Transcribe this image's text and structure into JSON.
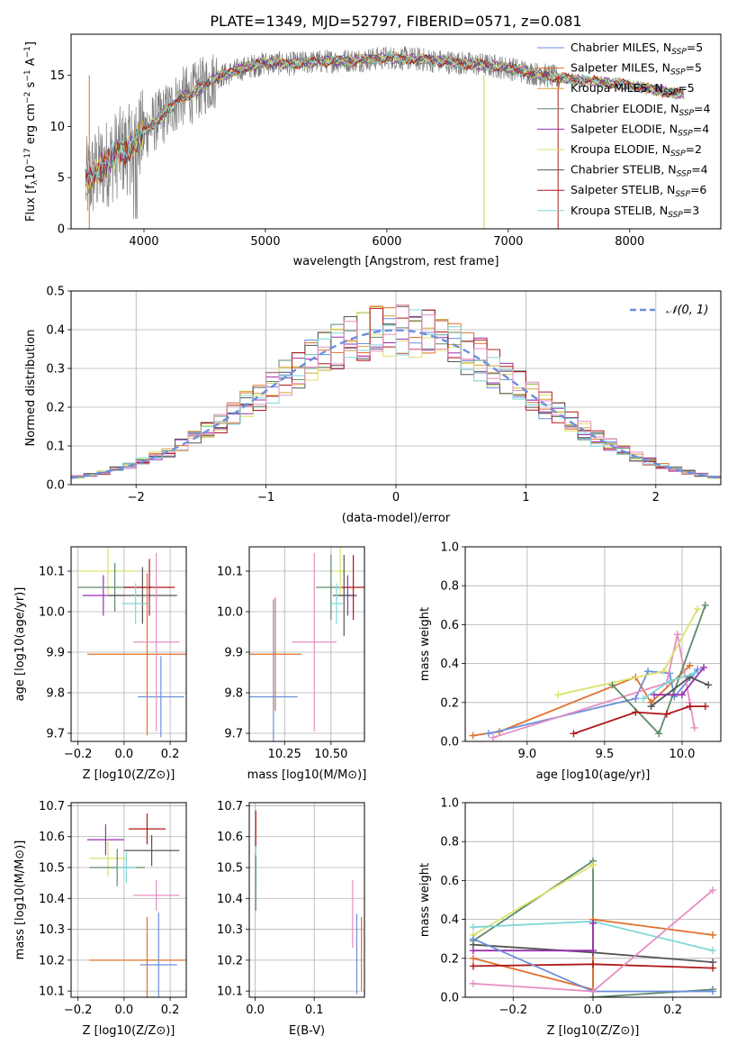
{
  "figure": {
    "title": "PLATE=1349, MJD=52797, FIBERID=0571, z=0.081"
  },
  "palette": {
    "miles_chab": "#6b8fdc",
    "miles_salp": "#e0702a",
    "miles_krou": "#d7a430",
    "elodie_chab": "#5e8a6a",
    "elodie_salp": "#9a2fb0",
    "elodie_krou": "#d9e36a",
    "stelib_chab": "#555555",
    "stelib_salp": "#b01818",
    "stelib_krou": "#7fd6d8",
    "pink": "#e58fc2",
    "spectrum": "#7f7f7f",
    "grid": "#b0b0b0"
  },
  "chart_data": [
    {
      "id": "spectrum",
      "type": "line",
      "xlabel": "wavelength [Angstrom, rest frame]",
      "ylabel": "Flux [f$_\\lambda$10$^{-17}$ erg cm$^{-2}$ s$^{-1}$ A$^{-1}$]",
      "ylabel_parts": [
        "Flux [f",
        "λ",
        "10",
        "−17",
        " erg cm",
        "−2",
        " s",
        "−1",
        " A",
        "−1",
        "]"
      ],
      "xlim": [
        3400,
        8750
      ],
      "ylim": [
        0,
        19
      ],
      "xticks": [
        4000,
        5000,
        6000,
        7000,
        8000
      ],
      "yticks": [
        0,
        5,
        10,
        15
      ],
      "continuum_x": [
        3500,
        3600,
        3700,
        3800,
        3900,
        4000,
        4100,
        4200,
        4300,
        4400,
        4500,
        4600,
        4800,
        5000,
        5200,
        5400,
        5600,
        5800,
        6000,
        6200,
        6400,
        6600,
        6800,
        7000,
        7200,
        7400,
        7600,
        7800,
        8000,
        8200,
        8400
      ],
      "continuum_y": [
        4.2,
        5.5,
        6.5,
        7.5,
        7.8,
        9.5,
        10.5,
        11.5,
        12.8,
        13.2,
        14.0,
        14.8,
        15.6,
        16.2,
        16.1,
        16.3,
        16.4,
        16.5,
        16.7,
        16.6,
        16.4,
        16.2,
        16.0,
        15.7,
        15.2,
        14.8,
        14.5,
        14.3,
        14.0,
        13.6,
        13.2
      ],
      "legend": [
        {
          "label": "Chabrier MILES, N",
          "sub": "SSP",
          "value": "=5",
          "color_key": "miles_chab"
        },
        {
          "label": "Salpeter MILES, N",
          "sub": "SSP",
          "value": "=5",
          "color_key": "miles_salp"
        },
        {
          "label": "Kroupa MILES, N",
          "sub": "SSP",
          "value": "=5",
          "color_key": "miles_krou"
        },
        {
          "label": "Chabrier ELODIE, N",
          "sub": "SSP",
          "value": "=4",
          "color_key": "elodie_chab"
        },
        {
          "label": "Salpeter ELODIE, N",
          "sub": "SSP",
          "value": "=4",
          "color_key": "elodie_salp"
        },
        {
          "label": "Kroupa ELODIE, N",
          "sub": "SSP",
          "value": "=2",
          "color_key": "elodie_krou"
        },
        {
          "label": "Chabrier STELIB, N",
          "sub": "SSP",
          "value": "=4",
          "color_key": "stelib_chab"
        },
        {
          "label": "Salpeter STELIB, N",
          "sub": "SSP",
          "value": "=6",
          "color_key": "stelib_salp"
        },
        {
          "label": "Kroupa STELIB, N",
          "sub": "SSP",
          "value": "=3",
          "color_key": "stelib_krou"
        }
      ]
    },
    {
      "id": "residuals",
      "type": "line",
      "xlabel": "(data-model)/error",
      "ylabel": "Normed distribution",
      "xlim": [
        -2.5,
        2.5
      ],
      "ylim": [
        0,
        0.5
      ],
      "xticks": [
        -2,
        -1,
        0,
        1,
        2
      ],
      "xtick_labels": [
        "−2",
        "−1",
        "0",
        "1",
        "2"
      ],
      "yticks": [
        0.0,
        0.1,
        0.2,
        0.3,
        0.4,
        0.5
      ],
      "ytick_labels": [
        "0.0",
        "0.1",
        "0.2",
        "0.3",
        "0.4",
        "0.5"
      ],
      "legend": [
        {
          "label": "𝒩(0, 1)",
          "color_key": "miles_chab",
          "dash": true
        }
      ]
    },
    {
      "id": "age_vs_Z",
      "type": "scatter",
      "xlabel": "Z [log10(Z/Z⊙)]",
      "ylabel": "age  [log10(age/yr)]",
      "xlim": [
        -0.23,
        0.27
      ],
      "ylim": [
        9.68,
        10.16
      ],
      "xticks": [
        -0.2,
        0.0,
        0.2
      ],
      "xtick_labels": [
        "−0.2",
        "0.0",
        "0.2"
      ],
      "yticks": [
        9.7,
        9.8,
        9.9,
        10.0,
        10.1
      ],
      "ytick_labels": [
        "9.7",
        "9.8",
        "9.9",
        "10.0",
        "10.1"
      ],
      "points": [
        {
          "x": -0.09,
          "y": 10.04,
          "xe": 0.09,
          "ye": 0.05,
          "c": "elodie_salp"
        },
        {
          "x": -0.07,
          "y": 10.1,
          "xe": 0.13,
          "ye": 0.06,
          "c": "elodie_krou"
        },
        {
          "x": -0.04,
          "y": 10.06,
          "xe": 0.16,
          "ye": 0.06,
          "c": "elodie_chab"
        },
        {
          "x": 0.08,
          "y": 10.04,
          "xe": 0.15,
          "ye": 0.07,
          "c": "stelib_chab"
        },
        {
          "x": 0.11,
          "y": 10.06,
          "xe": 0.11,
          "ye": 0.07,
          "c": "stelib_salp"
        },
        {
          "x": 0.05,
          "y": 10.02,
          "xe": 0.06,
          "ye": 0.05,
          "c": "stelib_krou"
        },
        {
          "x": 0.1,
          "y": 9.895,
          "xe": 0.26,
          "ye": 0.2,
          "c": "miles_salp"
        },
        {
          "x": 0.16,
          "y": 9.79,
          "xe": 0.1,
          "ye": 0.1,
          "c": "miles_chab"
        },
        {
          "x": 0.14,
          "y": 9.925,
          "xe": 0.1,
          "ye": 0.22,
          "c": "pink"
        }
      ]
    },
    {
      "id": "age_vs_mass",
      "type": "scatter",
      "xlabel": "mass [log10(M/M⊙)]",
      "xlim": [
        10.06,
        10.68
      ],
      "ylim": [
        9.68,
        10.16
      ],
      "xticks": [
        10.25,
        10.5
      ],
      "xtick_labels": [
        "10.25",
        "10.50"
      ],
      "yticks": [
        9.7,
        9.8,
        9.9,
        10.0,
        10.1
      ],
      "ytick_labels": [
        "9.7",
        "9.8",
        "9.9",
        "10.0",
        "10.1"
      ],
      "points": [
        {
          "x": 10.2,
          "y": 9.895,
          "xe": 0.14,
          "ye": 0.14,
          "c": "miles_salp"
        },
        {
          "x": 10.19,
          "y": 9.79,
          "xe": 0.13,
          "ye": 0.24,
          "c": "miles_chab"
        },
        {
          "x": 10.41,
          "y": 9.925,
          "xe": 0.12,
          "ye": 0.22,
          "c": "pink"
        },
        {
          "x": 10.5,
          "y": 10.06,
          "xe": 0.08,
          "ye": 0.08,
          "c": "elodie_chab"
        },
        {
          "x": 10.55,
          "y": 10.1,
          "xe": 0.04,
          "ye": 0.06,
          "c": "elodie_krou"
        },
        {
          "x": 10.59,
          "y": 10.04,
          "xe": 0.05,
          "ye": 0.05,
          "c": "elodie_salp"
        },
        {
          "x": 10.57,
          "y": 10.04,
          "xe": 0.06,
          "ye": 0.1,
          "c": "stelib_chab"
        },
        {
          "x": 10.62,
          "y": 10.06,
          "xe": 0.06,
          "ye": 0.08,
          "c": "stelib_salp"
        },
        {
          "x": 10.53,
          "y": 10.02,
          "xe": 0.04,
          "ye": 0.05,
          "c": "stelib_krou"
        }
      ]
    },
    {
      "id": "weight_vs_age",
      "type": "line",
      "xlabel": "age  [log10(age/yr)]",
      "ylabel": "mass weight",
      "xlim": [
        8.6,
        10.25
      ],
      "ylim": [
        0,
        1.0
      ],
      "xticks": [
        9.0,
        9.5,
        10.0
      ],
      "xtick_labels": [
        "9.0",
        "9.5",
        "10.0"
      ],
      "yticks": [
        0.0,
        0.2,
        0.4,
        0.6,
        0.8,
        1.0
      ],
      "ytick_labels": [
        "0.0",
        "0.2",
        "0.4",
        "0.6",
        "0.8",
        "1.0"
      ],
      "series": [
        {
          "c": "miles_salp",
          "x": [
            8.65,
            8.82,
            9.7,
            9.8,
            10.05
          ],
          "y": [
            0.03,
            0.05,
            0.33,
            0.2,
            0.39
          ]
        },
        {
          "c": "miles_chab",
          "x": [
            8.75,
            9.7,
            9.78,
            9.92,
            9.95,
            10.1
          ],
          "y": [
            0.04,
            0.22,
            0.36,
            0.35,
            0.23,
            0.37
          ]
        },
        {
          "c": "pink",
          "x": [
            8.78,
            9.9,
            9.97,
            10.05,
            10.08
          ],
          "y": [
            0.02,
            0.3,
            0.55,
            0.2,
            0.07
          ]
        },
        {
          "c": "elodie_krou",
          "x": [
            9.2,
            9.88,
            10.1
          ],
          "y": [
            0.24,
            0.36,
            0.68
          ]
        },
        {
          "c": "elodie_chab",
          "x": [
            9.55,
            9.85,
            10.15
          ],
          "y": [
            0.29,
            0.04,
            0.7
          ]
        },
        {
          "c": "elodie_salp",
          "x": [
            9.82,
            10.0,
            10.14
          ],
          "y": [
            0.24,
            0.24,
            0.38
          ]
        },
        {
          "c": "stelib_salp",
          "x": [
            9.3,
            9.7,
            9.9,
            10.05,
            10.15
          ],
          "y": [
            0.04,
            0.15,
            0.14,
            0.18,
            0.18
          ]
        },
        {
          "c": "stelib_chab",
          "x": [
            9.8,
            10.05,
            10.17
          ],
          "y": [
            0.18,
            0.33,
            0.29
          ]
        },
        {
          "c": "stelib_krou",
          "x": [
            9.75,
            9.92,
            10.08
          ],
          "y": [
            0.22,
            0.31,
            0.35
          ]
        }
      ]
    },
    {
      "id": "mass_vs_Z",
      "type": "scatter",
      "xlabel": "Z [log10(Z/Z⊙)]",
      "ylabel": "mass [log10(M/M⊙)]",
      "xlim": [
        -0.23,
        0.27
      ],
      "ylim": [
        10.08,
        10.71
      ],
      "xticks": [
        -0.2,
        0.0,
        0.2
      ],
      "xtick_labels": [
        "−0.2",
        "0.0",
        "0.2"
      ],
      "yticks": [
        10.1,
        10.2,
        10.3,
        10.4,
        10.5,
        10.6,
        10.7
      ],
      "ytick_labels": [
        "10.1",
        "10.2",
        "10.3",
        "10.4",
        "10.5",
        "10.6",
        "10.7"
      ],
      "points": [
        {
          "x": -0.08,
          "y": 10.59,
          "xe": 0.08,
          "ye": 0.05,
          "c": "elodie_salp"
        },
        {
          "x": -0.07,
          "y": 10.53,
          "xe": 0.08,
          "ye": 0.06,
          "c": "elodie_krou"
        },
        {
          "x": -0.03,
          "y": 10.5,
          "xe": 0.12,
          "ye": 0.06,
          "c": "elodie_chab"
        },
        {
          "x": 0.1,
          "y": 10.625,
          "xe": 0.08,
          "ye": 0.05,
          "c": "stelib_salp"
        },
        {
          "x": 0.12,
          "y": 10.555,
          "xe": 0.12,
          "ye": 0.05,
          "c": "stelib_chab"
        },
        {
          "x": 0.01,
          "y": 10.5,
          "xe": 0.04,
          "ye": 0.05,
          "c": "stelib_krou"
        },
        {
          "x": 0.1,
          "y": 10.2,
          "xe": 0.25,
          "ye": 0.14,
          "c": "miles_salp"
        },
        {
          "x": 0.15,
          "y": 10.185,
          "xe": 0.08,
          "ye": 0.17,
          "c": "miles_chab"
        },
        {
          "x": 0.14,
          "y": 10.41,
          "xe": 0.1,
          "ye": 0.05,
          "c": "pink"
        }
      ]
    },
    {
      "id": "mass_vs_ebv",
      "type": "scatter",
      "xlabel": "E(B-V)",
      "xlim": [
        -0.01,
        0.185
      ],
      "ylim": [
        10.08,
        10.71
      ],
      "xticks": [
        0.0,
        0.1
      ],
      "xtick_labels": [
        "0.0",
        "0.1"
      ],
      "yticks": [
        10.1,
        10.2,
        10.3,
        10.4,
        10.5,
        10.6,
        10.7
      ],
      "ytick_labels": [
        "10.1",
        "10.2",
        "10.3",
        "10.4",
        "10.5",
        "10.6",
        "10.7"
      ],
      "points": [
        {
          "x": 0.001,
          "y": 10.625,
          "xe": 0,
          "ye": 0.06,
          "c": "stelib_salp"
        },
        {
          "x": 0.001,
          "y": 10.5,
          "xe": 0,
          "ye": 0.07,
          "c": "stelib_krou"
        },
        {
          "x": 0.001,
          "y": 10.45,
          "xe": 0,
          "ye": 0.09,
          "c": "elodie_chab"
        },
        {
          "x": 0.165,
          "y": 10.35,
          "xe": 0,
          "ye": 0.11,
          "c": "pink"
        },
        {
          "x": 0.18,
          "y": 10.22,
          "xe": 0,
          "ye": 0.12,
          "c": "miles_salp"
        },
        {
          "x": 0.172,
          "y": 10.22,
          "xe": 0,
          "ye": 0.13,
          "c": "miles_chab"
        }
      ]
    },
    {
      "id": "weight_vs_Z",
      "type": "line",
      "xlabel": "Z [log10(Z/Z⊙)]",
      "ylabel": "mass weight",
      "xlim": [
        -0.32,
        0.32
      ],
      "ylim": [
        0,
        1.0
      ],
      "xticks": [
        -0.2,
        0.0,
        0.2
      ],
      "xtick_labels": [
        "−0.2",
        "0.0",
        "0.2"
      ],
      "yticks": [
        0.0,
        0.2,
        0.4,
        0.6,
        0.8,
        1.0
      ],
      "ytick_labels": [
        "0.0",
        "0.2",
        "0.4",
        "0.6",
        "0.8",
        "1.0"
      ],
      "series": [
        {
          "c": "elodie_chab",
          "x": [
            -0.3,
            0.0,
            0.0,
            0.0,
            0.3
          ],
          "y": [
            0.29,
            0.7,
            0.0,
            0.0,
            0.04
          ]
        },
        {
          "c": "elodie_krou",
          "x": [
            -0.3,
            0.0
          ],
          "y": [
            0.32,
            0.68
          ]
        },
        {
          "c": "stelib_krou",
          "x": [
            -0.3,
            0.0,
            0.3
          ],
          "y": [
            0.36,
            0.39,
            0.24
          ]
        },
        {
          "c": "miles_salp",
          "x": [
            -0.3,
            0.0,
            0.0,
            0.3
          ],
          "y": [
            0.2,
            0.04,
            0.4,
            0.32
          ]
        },
        {
          "c": "stelib_chab",
          "x": [
            -0.3,
            0.0,
            0.3
          ],
          "y": [
            0.27,
            0.23,
            0.18
          ]
        },
        {
          "c": "elodie_salp",
          "x": [
            -0.3,
            0.0,
            0.0
          ],
          "y": [
            0.24,
            0.24,
            0.38
          ]
        },
        {
          "c": "stelib_salp",
          "x": [
            -0.3,
            0.0,
            0.3
          ],
          "y": [
            0.16,
            0.17,
            0.15
          ]
        },
        {
          "c": "miles_chab",
          "x": [
            -0.3,
            0.0,
            0.3
          ],
          "y": [
            0.3,
            0.03,
            0.03
          ]
        },
        {
          "c": "pink",
          "x": [
            -0.3,
            0.0,
            0.3
          ],
          "y": [
            0.07,
            0.03,
            0.55
          ]
        }
      ]
    }
  ]
}
